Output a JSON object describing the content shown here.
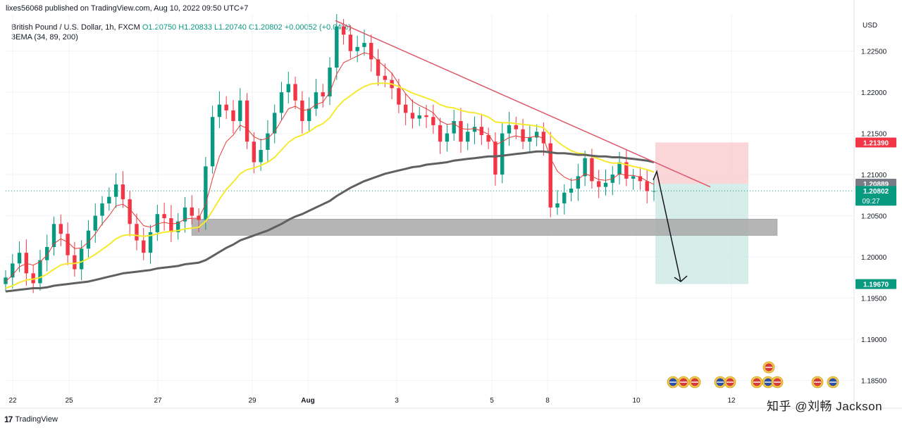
{
  "header": {
    "published": "lixes56068 published on TradingView.com, Aug 10, 2022 09:50 UTC+7"
  },
  "legend": {
    "symbol": "British Pound / U.S. Dollar, 1h, FXCM",
    "ohlc": "O1.20750  H1.20833  L1.20740  C1.20802  +0.00052 (+0.04%)",
    "indicator": "3EMA (34, 89, 200)"
  },
  "axis": {
    "unit": "USD",
    "y_ticks": [
      "1.22500",
      "1.22000",
      "1.21500",
      "1.21000",
      "1.20500",
      "1.20000",
      "1.19500",
      "1.19000",
      "1.18500"
    ],
    "x_ticks": [
      "22",
      "25",
      "27",
      "29",
      "Aug",
      "3",
      "5",
      "8",
      "10",
      "12"
    ]
  },
  "price_labels": {
    "stop": "1.21390",
    "entry": "1.20889",
    "last": "1.20802",
    "countdown": "09:27",
    "target": "1.19670"
  },
  "footer": {
    "brand": "TradingView"
  },
  "watermark": "知乎 @刘畅 Jackson",
  "colors": {
    "up_candle": "#089981",
    "down_candle": "#f23645",
    "ema34": "#e53935",
    "ema89": "#f5ea2e",
    "ema200": "#606060",
    "trendline": "#e0566a",
    "support_zone": "#a9a9a9",
    "stop_zone": "#f8c8cc",
    "target_zone": "#cce9e3",
    "stop_label": "#f23645",
    "entry_label": "#787b86",
    "last_label": "#089981",
    "target_label": "#089981"
  },
  "chart_data": {
    "type": "candlestick",
    "symbol": "GBPUSD",
    "timeframe": "1h",
    "ylim": [
      1.1835,
      1.2295
    ],
    "x_tick_labels": [
      "22",
      "25",
      "27",
      "29",
      "Aug",
      "3",
      "5",
      "8",
      "10",
      "12"
    ],
    "closes": [
      1.1975,
      1.1992,
      1.2005,
      1.198,
      1.1968,
      1.1996,
      1.2012,
      1.204,
      1.2028,
      1.2002,
      1.1985,
      1.201,
      1.2032,
      1.205,
      1.2065,
      1.2073,
      1.2088,
      1.207,
      1.204,
      1.202,
      1.2005,
      1.203,
      1.2052,
      1.2047,
      1.203,
      1.2043,
      1.206,
      1.205,
      1.2045,
      1.211,
      1.217,
      1.2185,
      1.2178,
      1.2165,
      1.219,
      1.214,
      1.2115,
      1.213,
      1.215,
      1.2175,
      1.22,
      1.221,
      1.219,
      1.2165,
      1.218,
      1.22,
      1.2195,
      1.223,
      1.228,
      1.227,
      1.225,
      1.2255,
      1.226,
      1.224,
      1.222,
      1.2215,
      1.2205,
      1.2185,
      1.2175,
      1.2168,
      1.2172,
      1.217,
      1.216,
      1.214,
      1.215,
      1.2165,
      1.214,
      1.2152,
      1.2158,
      1.2148,
      1.214,
      1.21,
      1.215,
      1.216,
      1.2155,
      1.214,
      1.2145,
      1.2152,
      1.2138,
      1.206,
      1.2065,
      1.2078,
      1.2083,
      1.2098,
      1.212,
      1.2092,
      1.2085,
      1.209,
      1.21,
      1.2115,
      1.2095,
      1.2098,
      1.2092,
      1.208,
      1.208
    ],
    "ema": [
      {
        "name": "34",
        "values": [
          1.197,
          1.1978,
          1.1988,
          1.1992,
          1.199,
          1.1994,
          1.2002,
          1.2016,
          1.2022,
          1.2018,
          1.201,
          1.2011,
          1.2018,
          1.2028,
          1.204,
          1.205,
          1.2062,
          1.2064,
          1.2058,
          1.2048,
          1.2038,
          1.2036,
          1.204,
          1.2042,
          1.204,
          1.2041,
          1.2046,
          1.2047,
          1.2047,
          1.2064,
          1.2095,
          1.2122,
          1.214,
          1.2148,
          1.216,
          1.2156,
          1.2146,
          1.2142,
          1.2144,
          1.2152,
          1.2166,
          1.218,
          1.2183,
          1.2178,
          1.2179,
          1.2185,
          1.2188,
          1.22,
          1.2222,
          1.2236,
          1.224,
          1.2244,
          1.2248,
          1.2246,
          1.2238,
          1.2231,
          1.2223,
          1.221,
          1.2198,
          1.2189,
          1.2184,
          1.218,
          1.2175,
          1.2165,
          1.2161,
          1.2162,
          1.2156,
          1.2155,
          1.2156,
          1.2153,
          1.2149,
          1.2136,
          1.214,
          1.2145,
          1.2147,
          1.2145,
          1.2145,
          1.2147,
          1.2144,
          1.212,
          1.2104,
          1.2097,
          1.2093,
          1.2094,
          1.2101,
          1.2098,
          1.2094,
          1.2093,
          1.2095,
          1.2101,
          1.2099,
          1.2099,
          1.2097,
          1.2092,
          1.2088
        ]
      },
      {
        "name": "89",
        "values": [
          1.1962,
          1.1965,
          1.1969,
          1.1972,
          1.1973,
          1.1975,
          1.1979,
          1.1985,
          1.199,
          1.1992,
          1.1992,
          1.1994,
          1.1998,
          1.2003,
          1.2009,
          1.2015,
          1.2022,
          1.2026,
          1.2027,
          1.2026,
          1.2025,
          1.2026,
          1.2028,
          1.203,
          1.2031,
          1.2032,
          1.2034,
          1.2035,
          1.2036,
          1.2043,
          1.2056,
          1.207,
          1.2082,
          1.2091,
          1.2101,
          1.2106,
          1.2108,
          1.2111,
          1.2115,
          1.2121,
          1.213,
          1.2139,
          1.2145,
          1.2148,
          1.2152,
          1.2158,
          1.2162,
          1.2169,
          1.2181,
          1.219,
          1.2196,
          1.2202,
          1.2207,
          1.221,
          1.2211,
          1.2211,
          1.221,
          1.2207,
          1.2203,
          1.2199,
          1.2196,
          1.2193,
          1.219,
          1.2185,
          1.2182,
          1.2181,
          1.2178,
          1.2176,
          1.2175,
          1.2173,
          1.217,
          1.2164,
          1.2163,
          1.2163,
          1.2162,
          1.2161,
          1.216,
          1.2159,
          1.2157,
          1.2148,
          1.214,
          1.2134,
          1.2129,
          1.2126,
          1.2125,
          1.2122,
          1.2119,
          1.2116,
          1.2114,
          1.2114,
          1.2112,
          1.211,
          1.2108,
          1.2106,
          1.2103
        ]
      },
      {
        "name": "200",
        "values": [
          1.1958,
          1.1959,
          1.196,
          1.1961,
          1.1962,
          1.1962,
          1.1963,
          1.1965,
          1.1966,
          1.1967,
          1.1968,
          1.1969,
          1.197,
          1.1972,
          1.1974,
          1.1976,
          1.1978,
          1.198,
          1.1981,
          1.1982,
          1.1983,
          1.1984,
          1.1986,
          1.1987,
          1.1988,
          1.1989,
          1.1991,
          1.1992,
          1.1993,
          1.1996,
          1.2001,
          1.2006,
          1.2011,
          1.2015,
          1.202,
          1.2023,
          1.2026,
          1.2029,
          1.2032,
          1.2036,
          1.204,
          1.2045,
          1.2049,
          1.2052,
          1.2056,
          1.206,
          1.2064,
          1.2068,
          1.2074,
          1.2079,
          1.2084,
          1.2088,
          1.2092,
          1.2095,
          1.2098,
          1.2101,
          1.2103,
          1.2105,
          1.2107,
          1.2109,
          1.211,
          1.2112,
          1.2113,
          1.2114,
          1.2115,
          1.2117,
          1.2118,
          1.2119,
          1.212,
          1.2121,
          1.2122,
          1.2122,
          1.2123,
          1.2124,
          1.2125,
          1.2126,
          1.2127,
          1.2128,
          1.2128,
          1.2127,
          1.2126,
          1.2126,
          1.2125,
          1.2124,
          1.2124,
          1.2123,
          1.2122,
          1.2122,
          1.2121,
          1.2121,
          1.212,
          1.2119,
          1.2118,
          1.2117,
          1.2115
        ]
      }
    ],
    "annotations": {
      "support_zone": [
        1.2026,
        1.2046
      ],
      "stop_zone": [
        1.20889,
        1.2139
      ],
      "target_zone": [
        1.1967,
        1.20889
      ],
      "trendline": {
        "from": 1.2287,
        "to": 1.2085
      },
      "projection_arrow": {
        "from": 1.2102,
        "to": 1.197
      }
    }
  }
}
